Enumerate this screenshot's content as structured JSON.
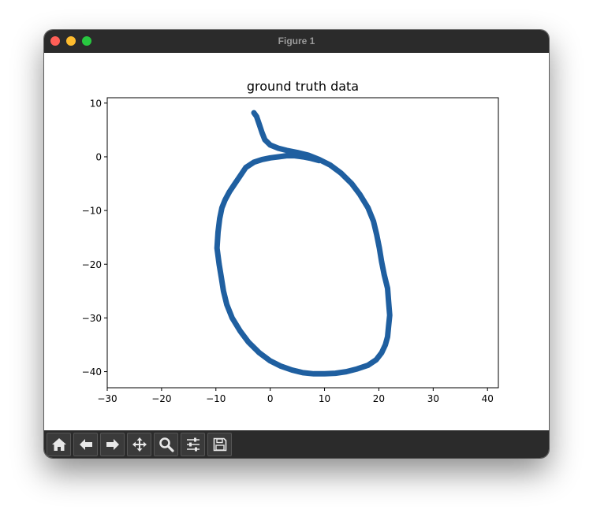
{
  "window": {
    "title": "Figure 1"
  },
  "toolbar": {
    "buttons": [
      {
        "name": "home-button",
        "icon": "home-icon"
      },
      {
        "name": "back-button",
        "icon": "arrow-left-icon"
      },
      {
        "name": "forward-button",
        "icon": "arrow-right-icon"
      },
      {
        "name": "pan-button",
        "icon": "move-icon"
      },
      {
        "name": "zoom-button",
        "icon": "magnifier-icon"
      },
      {
        "name": "configure-subplots-button",
        "icon": "sliders-icon"
      },
      {
        "name": "save-button",
        "icon": "floppy-disk-icon"
      }
    ]
  },
  "chart_data": {
    "type": "line",
    "title": "ground truth data",
    "xlabel": "",
    "ylabel": "",
    "xlim": [
      -30,
      42
    ],
    "ylim": [
      -43,
      11
    ],
    "xticks": [
      -30,
      -20,
      -10,
      0,
      10,
      20,
      30,
      40
    ],
    "yticks": [
      10,
      0,
      -10,
      -20,
      -30,
      -40
    ],
    "grid": false,
    "series": [
      {
        "color": "#1f5fa0",
        "x": [
          -3,
          -2.5,
          -2,
          -1.5,
          -1,
          0,
          1.5,
          3,
          5,
          7,
          9,
          11,
          13,
          15,
          16.5,
          18,
          19,
          19.6,
          20.1,
          20.5,
          21,
          21.6,
          21.8,
          22,
          21.8,
          21.6,
          21.2,
          20.5,
          19.5,
          18,
          16,
          14,
          12,
          10,
          8,
          6,
          4,
          2,
          0,
          -2,
          -4,
          -5.5,
          -7,
          -8,
          -8.6,
          -9,
          -9.4,
          -9.8,
          -9.6,
          -9.3,
          -8.9,
          -8.3,
          -7.5,
          -6.5,
          -5.5,
          -4.5,
          -3,
          -1.5,
          0,
          1.5,
          3,
          4.5,
          6,
          7.5,
          9
        ],
        "y": [
          8.2,
          7.5,
          6,
          4.5,
          3.2,
          2.2,
          1.6,
          1.2,
          0.8,
          0.3,
          -0.5,
          -1.5,
          -3,
          -5,
          -7,
          -9.5,
          -12,
          -14.5,
          -17,
          -19.5,
          -22,
          -24.5,
          -27,
          -29.5,
          -31.5,
          -33.5,
          -35,
          -36.5,
          -37.8,
          -38.8,
          -39.5,
          -40,
          -40.3,
          -40.4,
          -40.4,
          -40.2,
          -39.7,
          -39,
          -38,
          -36.5,
          -34.5,
          -32.5,
          -30,
          -27.5,
          -25,
          -22.5,
          -20,
          -17,
          -14,
          -11.5,
          -9.5,
          -8,
          -6.5,
          -5,
          -3.5,
          -2,
          -1,
          -0.5,
          -0.2,
          0,
          0.2,
          0.2,
          0,
          -0.3,
          -0.7
        ]
      }
    ]
  }
}
